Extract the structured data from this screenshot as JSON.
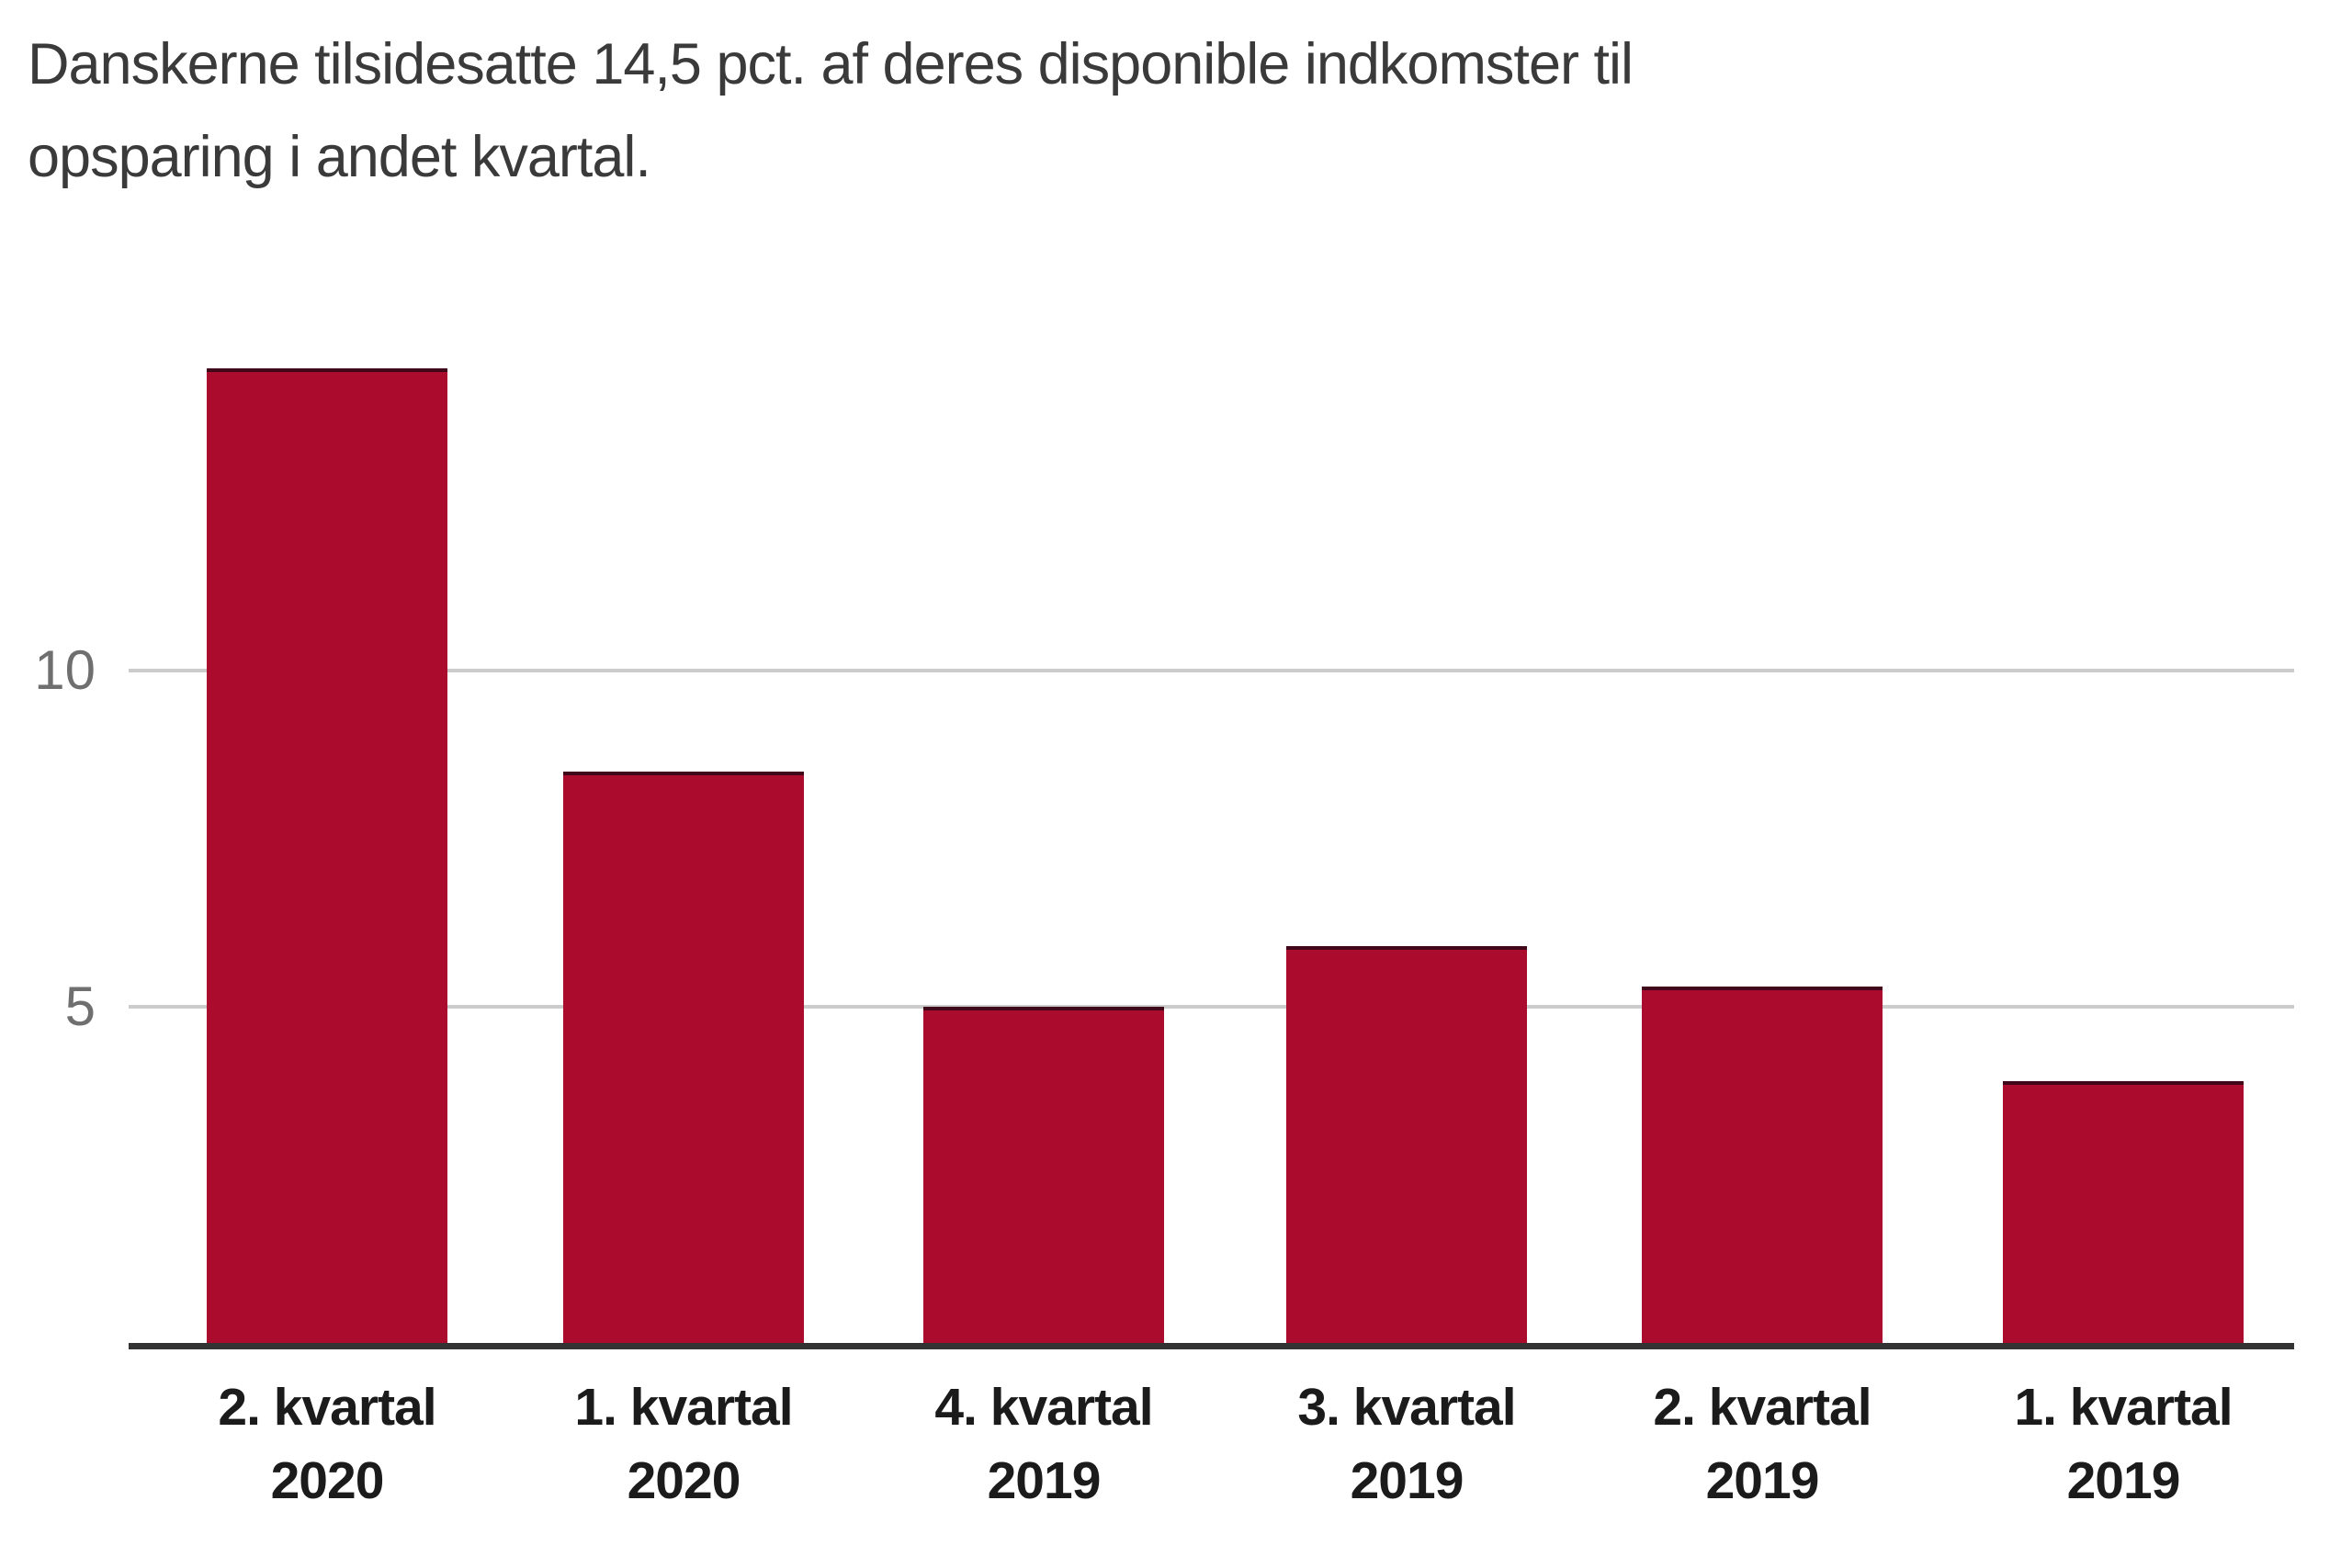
{
  "title": {
    "line1": "Danskerne tilsidesatte 14,5 pct. af deres disponible indkomster til",
    "line2": "opsparing i andet kvartal."
  },
  "chart_data": {
    "type": "bar",
    "categories": [
      "2. kvartal 2020",
      "1. kvartal 2020",
      "4. kvartal 2019",
      "3. kvartal 2019",
      "2. kvartal 2019",
      "1. kvartal 2019"
    ],
    "category_labels": [
      {
        "quarter": "2. kvartal",
        "year": "2020"
      },
      {
        "quarter": "1. kvartal",
        "year": "2020"
      },
      {
        "quarter": "4. kvartal",
        "year": "2019"
      },
      {
        "quarter": "3. kvartal",
        "year": "2019"
      },
      {
        "quarter": "2. kvartal",
        "year": "2019"
      },
      {
        "quarter": "1. kvartal",
        "year": "2019"
      }
    ],
    "values": [
      14.5,
      8.5,
      5.0,
      5.9,
      5.3,
      3.9
    ],
    "yticks": [
      5,
      10
    ],
    "ylim": [
      0,
      14.8
    ],
    "grid": true,
    "legend": false,
    "title": "Danskerne tilsidesatte 14,5 pct. af deres disponible indkomster til opsparing i andet kvartal.",
    "xlabel": "",
    "ylabel": "",
    "colors": {
      "bar": "#ab0b2d",
      "bar_top_edge": "#40061a",
      "grid": "#cccccc",
      "axis": "#333333",
      "title_text": "#3a3a3a",
      "tick_text": "#6f6f6f",
      "label_text": "#1b1b1b"
    }
  }
}
